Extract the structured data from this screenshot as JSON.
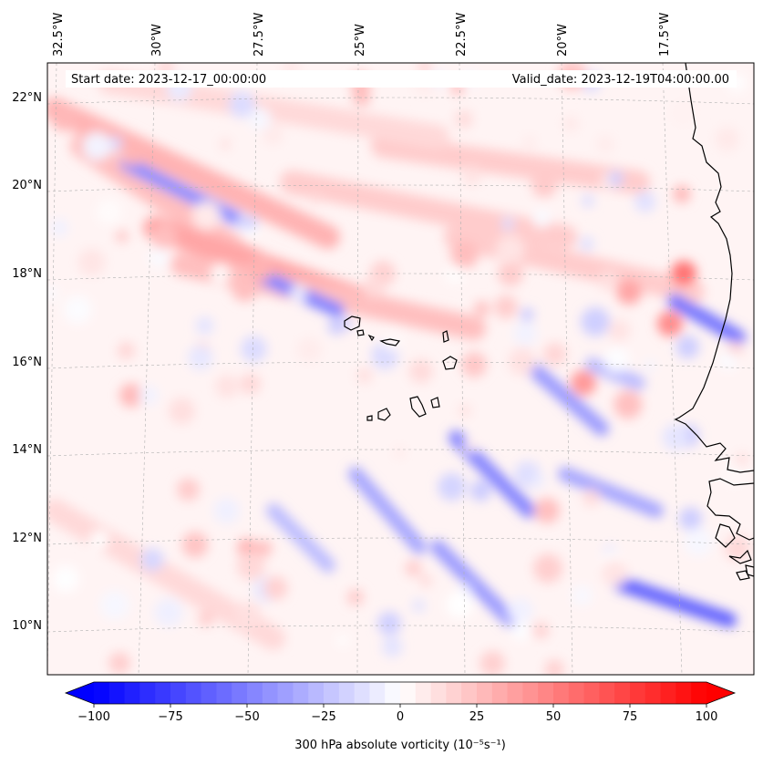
{
  "map": {
    "start_date": "Start date: 2023-12-17_00:00:00",
    "valid_date": "Valid_date: 2023-12-19T04:00:00.00",
    "lon_labels": [
      "32.5°W",
      "30°W",
      "27.5°W",
      "25°W",
      "22.5°W",
      "20°W",
      "17.5°W"
    ],
    "lat_labels": [
      "22°N",
      "20°N",
      "18°N",
      "16°N",
      "14°N",
      "12°N",
      "10°N"
    ],
    "field": "300 hPa absolute vorticity",
    "colormap": "bwr",
    "land_outline_color": "#000000",
    "gridline_color": "#b0b0b0"
  },
  "colorbar": {
    "label": "300 hPa absolute vorticity (10⁻⁵s⁻¹)",
    "ticks": [
      "−100",
      "−75",
      "−50",
      "−25",
      "0",
      "25",
      "50",
      "75",
      "100"
    ],
    "min": -100,
    "max": 100,
    "extend": "both",
    "color_min": "#0000ff",
    "color_mid": "#ffffff",
    "color_max": "#ff0000"
  }
}
